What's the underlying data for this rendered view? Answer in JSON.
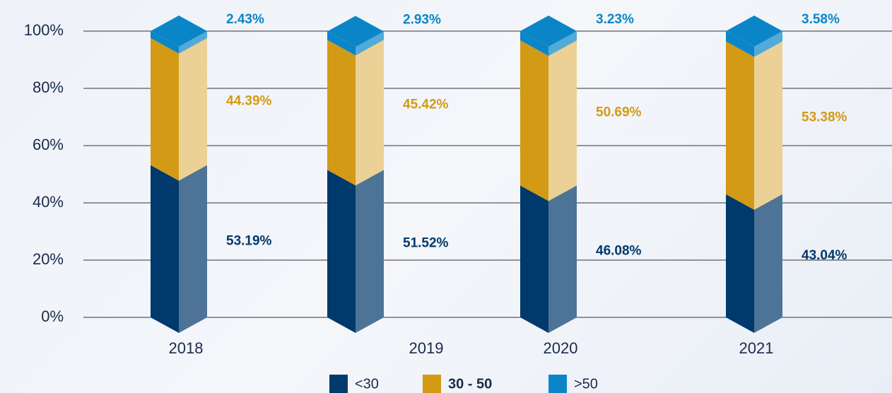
{
  "chart_data": {
    "type": "bar3d_stacked",
    "categories": [
      "2018",
      "2019",
      "2020",
      "2021"
    ],
    "series": [
      {
        "name": "<30",
        "color": "#00396b",
        "values": [
          53.19,
          51.52,
          46.08,
          43.04
        ],
        "value_labels": [
          "53.19%",
          "51.52%",
          "46.08%",
          "43.04%"
        ]
      },
      {
        "name": "30 - 50",
        "color": "#d39a16",
        "values": [
          44.39,
          45.42,
          50.69,
          53.38
        ],
        "value_labels": [
          "44.39%",
          "45.42%",
          "50.69%",
          "53.38%"
        ]
      },
      {
        "name": ">50",
        "color": "#0a86c8",
        "values": [
          2.43,
          2.93,
          3.23,
          3.58
        ],
        "value_labels": [
          "2.43%",
          "2.93%",
          "3.23%",
          "3.58%"
        ]
      }
    ],
    "ylim": [
      0,
      100
    ],
    "yticks": [
      {
        "value": 0,
        "label": "0%"
      },
      {
        "value": 20,
        "label": "20%"
      },
      {
        "value": 40,
        "label": "40%"
      },
      {
        "value": 60,
        "label": "60%"
      },
      {
        "value": 80,
        "label": "80%"
      },
      {
        "value": 100,
        "label": "100%"
      }
    ],
    "grid": true,
    "legend": "bottom"
  }
}
